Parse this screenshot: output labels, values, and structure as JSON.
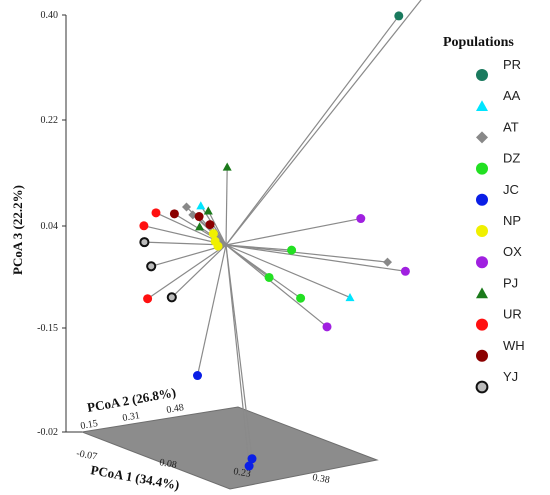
{
  "chart_data": {
    "type": "scatter",
    "subtype": "3d-pcoa-biplot",
    "axes": {
      "x": {
        "label": "PCoA 1 (34.4%)",
        "ticks": [
          "-0.07",
          "0.08",
          "0.23",
          "0.38"
        ]
      },
      "y": {
        "label": "PCoA 2 (26.8%)",
        "ticks": [
          "0.15",
          "0.31",
          "0.48"
        ]
      },
      "z": {
        "label": "PCoA 3 (22.2%)",
        "ticks": [
          "0.40",
          "0.22",
          "0.04",
          "-0.15",
          "-0.02"
        ]
      }
    },
    "grid": false,
    "legend": {
      "title": "Populations",
      "position": "right",
      "entries": [
        {
          "label": "PR",
          "color": "#1a7a5e",
          "marker": "circle"
        },
        {
          "label": "AA",
          "color": "#00e5ff",
          "marker": "triangle"
        },
        {
          "label": "AT",
          "color": "#888888",
          "marker": "diamond"
        },
        {
          "label": "DZ",
          "color": "#22e022",
          "marker": "circle"
        },
        {
          "label": "JC",
          "color": "#0a1ee6",
          "marker": "circle"
        },
        {
          "label": "NP",
          "color": "#f0f000",
          "marker": "circle"
        },
        {
          "label": "OX",
          "color": "#a020e0",
          "marker": "circle"
        },
        {
          "label": "PJ",
          "color": "#1b7a1b",
          "marker": "triangle"
        },
        {
          "label": "UR",
          "color": "#ff1010",
          "marker": "circle"
        },
        {
          "label": "WH",
          "color": "#8b0000",
          "marker": "circle"
        },
        {
          "label": "YJ",
          "color": "#bbbbbb",
          "marker": "circle-outline"
        }
      ]
    },
    "points": [
      {
        "pop": "PR",
        "approx": [
          0.33,
          0.4,
          0.37
        ]
      },
      {
        "pop": "PR",
        "approx": [
          0.36,
          0.45,
          0.4
        ]
      },
      {
        "pop": "PJ",
        "approx": [
          0.02,
          0.3,
          0.13
        ]
      },
      {
        "pop": "AA",
        "approx": [
          -0.05,
          0.32,
          0.06
        ]
      },
      {
        "pop": "AA",
        "approx": [
          0.35,
          0.2,
          -0.05
        ]
      },
      {
        "pop": "AT",
        "approx": [
          -0.1,
          0.35,
          0.05
        ]
      },
      {
        "pop": "AT",
        "approx": [
          -0.08,
          0.34,
          0.04
        ]
      },
      {
        "pop": "AT",
        "approx": [
          0.4,
          0.25,
          0.0
        ]
      },
      {
        "pop": "PJ",
        "approx": [
          -0.04,
          0.33,
          0.05
        ]
      },
      {
        "pop": "PJ",
        "approx": [
          -0.04,
          0.3,
          0.03
        ]
      },
      {
        "pop": "WH",
        "approx": [
          -0.06,
          0.33,
          0.04
        ]
      },
      {
        "pop": "WH",
        "approx": [
          -0.12,
          0.34,
          0.04
        ]
      },
      {
        "pop": "WH",
        "approx": [
          -0.03,
          0.32,
          0.03
        ]
      },
      {
        "pop": "UR",
        "approx": [
          -0.16,
          0.34,
          0.04
        ]
      },
      {
        "pop": "UR",
        "approx": [
          -0.18,
          0.33,
          0.02
        ]
      },
      {
        "pop": "UR",
        "approx": [
          -0.09,
          0.2,
          -0.07
        ]
      },
      {
        "pop": "YJ",
        "approx": [
          -0.16,
          0.3,
          0.0
        ]
      },
      {
        "pop": "YJ",
        "approx": [
          -0.12,
          0.26,
          -0.03
        ]
      },
      {
        "pop": "YJ",
        "approx": [
          -0.05,
          0.22,
          -0.07
        ]
      },
      {
        "pop": "NP",
        "approx": [
          -0.01,
          0.3,
          0.02
        ]
      },
      {
        "pop": "NP",
        "approx": [
          0.0,
          0.29,
          0.01
        ]
      },
      {
        "pop": "NP",
        "approx": [
          0.0,
          0.3,
          0.0
        ]
      },
      {
        "pop": "DZ",
        "approx": [
          0.16,
          0.3,
          0.0
        ]
      },
      {
        "pop": "DZ",
        "approx": [
          0.13,
          0.27,
          -0.04
        ]
      },
      {
        "pop": "DZ",
        "approx": [
          0.23,
          0.22,
          -0.06
        ]
      },
      {
        "pop": "OX",
        "approx": [
          0.26,
          0.38,
          0.04
        ]
      },
      {
        "pop": "OX",
        "approx": [
          0.42,
          0.28,
          -0.02
        ]
      },
      {
        "pop": "OX",
        "approx": [
          0.3,
          0.2,
          -0.1
        ]
      },
      {
        "pop": "JC",
        "approx": [
          0.05,
          0.15,
          -0.18
        ]
      },
      {
        "pop": "JC",
        "approx": [
          0.2,
          0.1,
          -0.3
        ]
      },
      {
        "pop": "JC",
        "approx": [
          0.2,
          0.09,
          -0.31
        ]
      }
    ]
  }
}
